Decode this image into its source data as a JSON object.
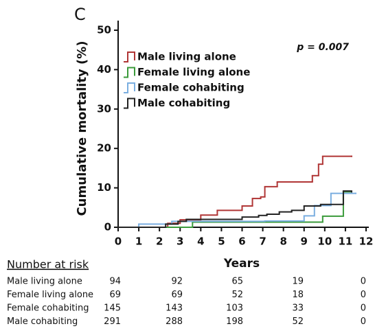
{
  "chart_data": {
    "type": "step",
    "panel_label": "C",
    "annotation": "p = 0.007",
    "x_label": "Years",
    "y_label": "Cumulative mortality (%)",
    "xlim": [
      0,
      12
    ],
    "xticks": [
      0,
      1,
      2,
      3,
      4,
      5,
      6,
      7,
      8,
      9,
      10,
      11,
      12
    ],
    "ylim": [
      0,
      50
    ],
    "yticks": [
      0,
      10,
      20,
      30,
      40,
      50
    ],
    "series": [
      {
        "name": "Male living alone",
        "color": "#b03535",
        "x": [
          0,
          2.4,
          3.0,
          4.0,
          4.8,
          6.0,
          6.5,
          6.9,
          7.1,
          7.7,
          9.4,
          9.7,
          9.9,
          11.3
        ],
        "values": [
          0,
          1.0,
          1.9,
          3.1,
          4.3,
          5.4,
          7.3,
          7.7,
          10.3,
          11.5,
          13.1,
          16.0,
          18.0,
          18.0
        ]
      },
      {
        "name": "Female living alone",
        "color": "#3a9a3a",
        "x": [
          0,
          3.6,
          7.1,
          9.9,
          10.9,
          11.3
        ],
        "values": [
          0,
          1.3,
          1.3,
          2.8,
          9.0,
          9.0
        ]
      },
      {
        "name": "Female cohabiting",
        "color": "#7aaee0",
        "x": [
          0,
          1.0,
          2.6,
          7.1,
          9.0,
          9.5,
          10.3,
          11.5
        ],
        "values": [
          0,
          0.8,
          1.5,
          1.6,
          2.9,
          5.5,
          8.6,
          8.6
        ]
      },
      {
        "name": "Male cohabiting",
        "color": "#222222",
        "x": [
          0,
          2.3,
          2.9,
          3.3,
          6.0,
          6.8,
          7.2,
          7.8,
          8.4,
          9.0,
          9.8,
          10.9,
          11.3
        ],
        "values": [
          0,
          0.8,
          1.5,
          2.0,
          2.6,
          3.0,
          3.3,
          3.9,
          4.3,
          5.4,
          5.8,
          9.2,
          9.0
        ]
      }
    ]
  },
  "risk_table": {
    "title": "Number at risk",
    "rows": [
      {
        "label": "Male living alone",
        "values": [
          "94",
          "92",
          "65",
          "19",
          "0"
        ]
      },
      {
        "label": "Female living alone",
        "values": [
          "69",
          "69",
          "52",
          "18",
          "0"
        ]
      },
      {
        "label": "Female cohabiting",
        "values": [
          "145",
          "143",
          "103",
          "33",
          "0"
        ]
      },
      {
        "label": "Male cohabiting",
        "values": [
          "291",
          "288",
          "198",
          "52",
          "0"
        ]
      }
    ]
  }
}
